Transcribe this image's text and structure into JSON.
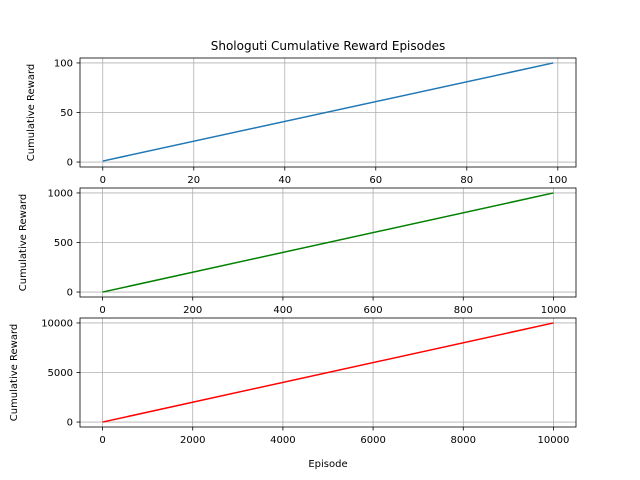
{
  "chart_data": [
    {
      "type": "line",
      "title": "Shologuti Cumulative Reward Episodes",
      "xlabel": "",
      "ylabel": "Cumulative Reward",
      "xlim": [
        -5,
        104
      ],
      "ylim": [
        -5,
        105
      ],
      "xticks": [
        0,
        20,
        40,
        60,
        80,
        100
      ],
      "yticks": [
        0,
        50,
        100
      ],
      "grid": true,
      "series": [
        {
          "color": "#1f77b4",
          "x": [
            0,
            99
          ],
          "y": [
            1,
            100
          ]
        }
      ]
    },
    {
      "type": "line",
      "title": "",
      "xlabel": "",
      "ylabel": "Cumulative Reward",
      "xlim": [
        -50,
        1050
      ],
      "ylim": [
        -50,
        1050
      ],
      "xticks": [
        0,
        200,
        400,
        600,
        800,
        1000
      ],
      "yticks": [
        0,
        500,
        1000
      ],
      "grid": true,
      "series": [
        {
          "color": "#008000",
          "x": [
            0,
            1000
          ],
          "y": [
            0,
            1000
          ]
        }
      ]
    },
    {
      "type": "line",
      "title": "",
      "xlabel": "Episode",
      "ylabel": "Cumulative Reward",
      "xlim": [
        -500,
        10500
      ],
      "ylim": [
        -500,
        10500
      ],
      "xticks": [
        0,
        2000,
        4000,
        6000,
        8000,
        10000
      ],
      "yticks": [
        0,
        5000,
        10000
      ],
      "grid": true,
      "series": [
        {
          "color": "#ff0000",
          "x": [
            0,
            10000
          ],
          "y": [
            0,
            10000
          ]
        }
      ]
    }
  ]
}
